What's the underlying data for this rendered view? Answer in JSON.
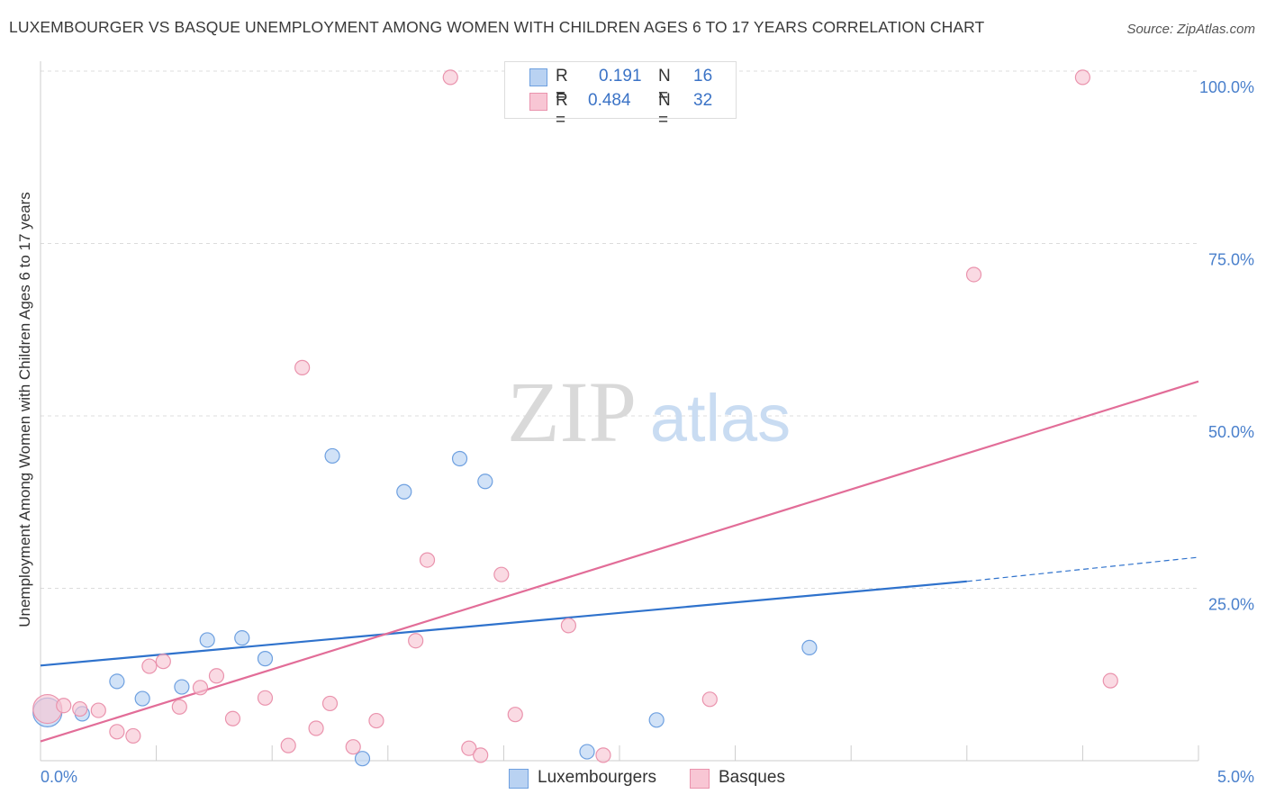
{
  "title": "LUXEMBOURGER VS BASQUE UNEMPLOYMENT AMONG WOMEN WITH CHILDREN AGES 6 TO 17 YEARS CORRELATION CHART",
  "source": "Source: ZipAtlas.com",
  "watermark": {
    "zip": "ZIP",
    "atlas": "atlas"
  },
  "stats": [
    {
      "r_label": "R =",
      "r_value": "0.191",
      "n_label": "N =",
      "n_value": "16"
    },
    {
      "r_label": "R =",
      "r_value": "0.484",
      "n_label": "N =",
      "n_value": "32"
    }
  ],
  "legend": [
    "Luxembourgers",
    "Basques"
  ],
  "chart_data": {
    "type": "scatter",
    "title": "LUXEMBOURGER VS BASQUE UNEMPLOYMENT AMONG WOMEN WITH CHILDREN AGES 6 TO 17 YEARS CORRELATION CHART",
    "xlabel": "",
    "ylabel": "Unemployment Among Women with Children Ages 6 to 17 years",
    "xlim": [
      0,
      5
    ],
    "ylim": [
      0,
      100
    ],
    "x_tick_labels": [
      "0.0%",
      "5.0%"
    ],
    "y_tick_labels": [
      "25.0%",
      "50.0%",
      "75.0%",
      "100.0%"
    ],
    "y_ticks": [
      25,
      50,
      75,
      100
    ],
    "grid": true,
    "legend_position": "bottom-center",
    "series": [
      {
        "name": "Luxembourgers",
        "color": "#6ea0e0",
        "fill": "#b9d2f2",
        "trend_color": "#2f72cc",
        "trend": {
          "x0": 0,
          "y0": 13.8,
          "x1": 4.0,
          "y1": 26.0,
          "x_dashed_end": 5.0,
          "y_dashed_end": 29.5
        },
        "points": [
          [
            0.03,
            7.0,
            16
          ],
          [
            0.18,
            6.8,
            8
          ],
          [
            0.33,
            11.5,
            8
          ],
          [
            0.44,
            9.0,
            8
          ],
          [
            0.61,
            10.7,
            8
          ],
          [
            0.72,
            17.5,
            8
          ],
          [
            0.87,
            17.8,
            8
          ],
          [
            0.97,
            14.8,
            8
          ],
          [
            1.26,
            44.2,
            8
          ],
          [
            1.39,
            0.3,
            8
          ],
          [
            1.57,
            39.0,
            8
          ],
          [
            1.81,
            43.8,
            8
          ],
          [
            1.92,
            40.5,
            8
          ],
          [
            2.36,
            1.3,
            8
          ],
          [
            2.66,
            5.9,
            8
          ],
          [
            3.32,
            16.4,
            8
          ]
        ]
      },
      {
        "name": "Basques",
        "color": "#ea93ad",
        "fill": "#f8c6d4",
        "trend_color": "#e26d98",
        "trend": {
          "x0": 0,
          "y0": 2.8,
          "x1": 5.0,
          "y1": 55.0
        },
        "points": [
          [
            0.03,
            7.5,
            16
          ],
          [
            0.1,
            8.0,
            8
          ],
          [
            0.17,
            7.5,
            8
          ],
          [
            0.25,
            7.3,
            8
          ],
          [
            0.33,
            4.2,
            8
          ],
          [
            0.4,
            3.6,
            8
          ],
          [
            0.47,
            13.7,
            8
          ],
          [
            0.53,
            14.4,
            8
          ],
          [
            0.6,
            7.8,
            8
          ],
          [
            0.69,
            10.6,
            8
          ],
          [
            0.76,
            12.3,
            8
          ],
          [
            0.83,
            6.1,
            8
          ],
          [
            0.97,
            9.1,
            8
          ],
          [
            1.07,
            2.2,
            8
          ],
          [
            1.13,
            57.0,
            8
          ],
          [
            1.19,
            4.7,
            8
          ],
          [
            1.25,
            8.3,
            8
          ],
          [
            1.35,
            2.0,
            8
          ],
          [
            1.45,
            5.8,
            8
          ],
          [
            1.62,
            17.4,
            8
          ],
          [
            1.67,
            29.1,
            8
          ],
          [
            1.77,
            99.1,
            8
          ],
          [
            1.85,
            1.8,
            8
          ],
          [
            1.9,
            0.8,
            8
          ],
          [
            1.99,
            27.0,
            8
          ],
          [
            2.05,
            6.7,
            8
          ],
          [
            2.28,
            19.6,
            8
          ],
          [
            2.43,
            0.8,
            8
          ],
          [
            2.89,
            8.9,
            8
          ],
          [
            4.03,
            70.5,
            8
          ],
          [
            4.5,
            99.1,
            8
          ],
          [
            4.62,
            11.6,
            8
          ]
        ]
      }
    ]
  }
}
